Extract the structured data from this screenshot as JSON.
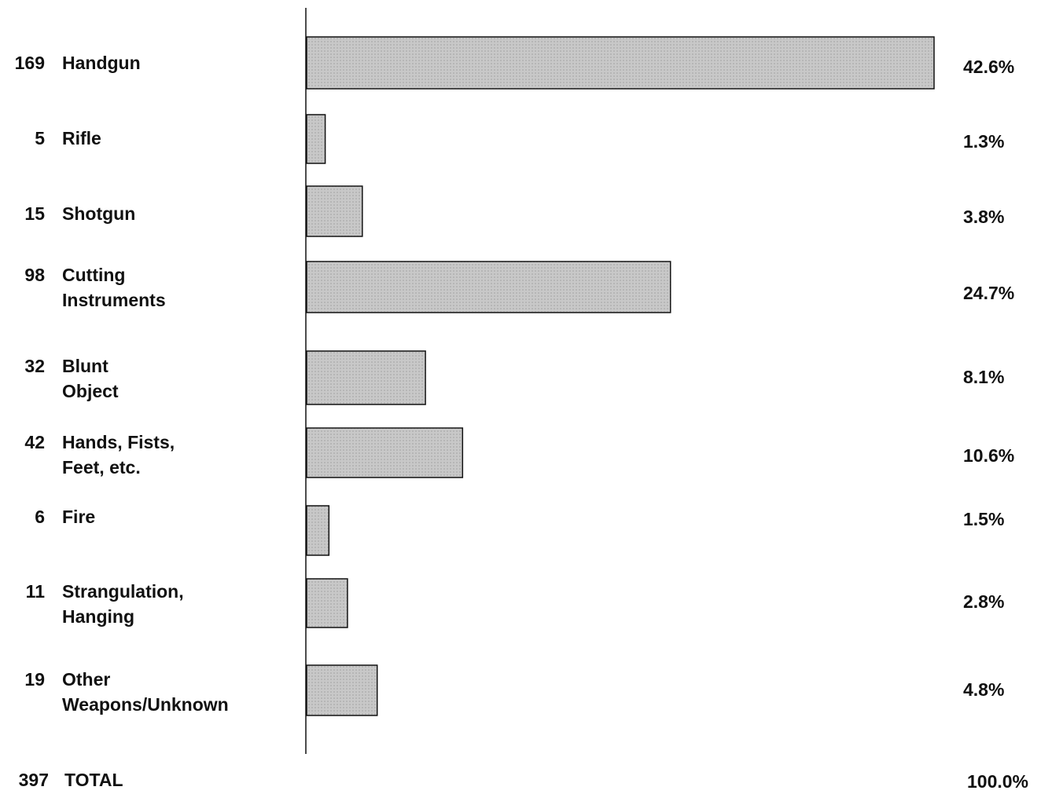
{
  "chart_data": {
    "type": "bar",
    "orientation": "horizontal",
    "categories": [
      [
        "Handgun"
      ],
      [
        "Rifle"
      ],
      [
        "Shotgun"
      ],
      [
        "Cutting",
        "Instruments"
      ],
      [
        "Blunt",
        "Object"
      ],
      [
        "Hands,  Fists,",
        "Feet,  etc."
      ],
      [
        "Fire"
      ],
      [
        "Strangulation,",
        "Hanging"
      ],
      [
        "Other",
        "Weapons/Unknown"
      ]
    ],
    "values": [
      169,
      5,
      15,
      98,
      32,
      42,
      6,
      11,
      19
    ],
    "percent_labels": [
      "42.6%",
      "1.3%",
      "3.8%",
      "24.7%",
      "8.1%",
      "10.6%",
      "1.5%",
      "2.8%",
      "4.8%"
    ],
    "total": 397,
    "total_label": "TOTAL",
    "total_percent_label": "100.0%",
    "color": "#c8c8c8"
  }
}
